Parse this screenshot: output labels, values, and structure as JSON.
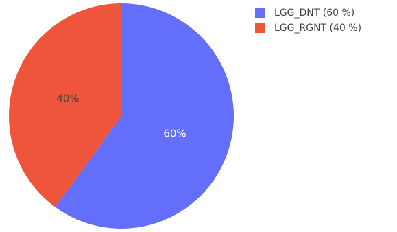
{
  "chart_data": {
    "type": "pie",
    "title": "",
    "direction": "clockwise",
    "start_angle_deg": 90,
    "slices": [
      {
        "label": "LGG_DNT",
        "value": 60,
        "percent_label": "60%",
        "legend_label": "LGG_DNT (60 %)",
        "color": "#636efa",
        "label_color": "#ffffff"
      },
      {
        "label": "LGG_RGNT",
        "value": 40,
        "percent_label": "40%",
        "legend_label": "LGG_RGNT (40 %)",
        "color": "#ef553b",
        "label_color": "#444444"
      }
    ],
    "legend_position": "top-right"
  }
}
